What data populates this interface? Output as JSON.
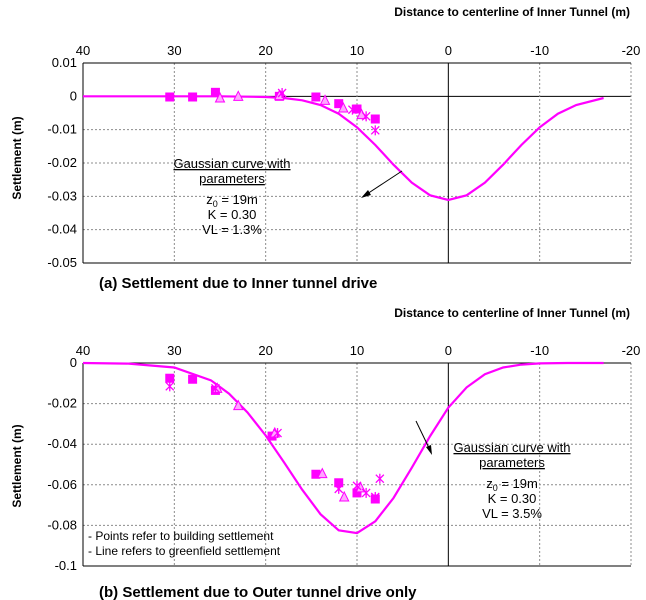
{
  "charts": [
    {
      "caption": "(a) Settlement due to Inner tunnel drive",
      "x_axis_title": "Distance to centerline of Inner Tunnel (m)",
      "y_axis_title": "Settlement (m)",
      "x_ticks": [
        "40",
        "30",
        "20",
        "10",
        "0",
        "-10",
        "-20"
      ],
      "y_ticks": [
        "0.01",
        "0",
        "-0.01",
        "-0.02",
        "-0.03",
        "-0.04",
        "-0.05"
      ],
      "annotation": {
        "title": "Gaussian curve with parameters",
        "z0": "z0 = 19m",
        "k": "K = 0.30",
        "vl": "VL = 1.3%"
      }
    },
    {
      "caption": "(b) Settlement due to Outer tunnel drive only",
      "x_axis_title": "Distance to centerline of Inner Tunnel (m)",
      "y_axis_title": "Settlement (m)",
      "x_ticks": [
        "40",
        "30",
        "20",
        "10",
        "0",
        "-10",
        "-20"
      ],
      "y_ticks": [
        "0",
        "-0.02",
        "-0.04",
        "-0.06",
        "-0.08",
        "-0.1"
      ],
      "annotation": {
        "title": "Gaussian curve with parameters",
        "z0": "z0 = 19m",
        "k": "K = 0.30",
        "vl": "VL = 3.5%"
      },
      "notes": [
        "- Points refer to building settlement",
        "- Line refers to greenfield settlement"
      ]
    }
  ],
  "colors": {
    "series": "#ff00ff",
    "grid": "#8c8c8c"
  },
  "chart_data": [
    {
      "type": "scatter",
      "xlim": [
        40,
        -20
      ],
      "ylim": [
        -0.05,
        0.01
      ],
      "gridlines": "dashed",
      "curve": {
        "x": [
          40,
          35,
          30,
          25,
          22,
          20,
          18,
          16,
          14,
          12,
          10,
          8,
          6,
          4,
          2,
          0,
          -2,
          -4,
          -6,
          -8,
          -10,
          -12,
          -14,
          -17
        ],
        "y": [
          0,
          0,
          0,
          0,
          -0.0001,
          -0.0002,
          -0.0005,
          -0.0012,
          -0.0026,
          -0.0052,
          -0.0093,
          -0.0146,
          -0.0205,
          -0.0259,
          -0.0297,
          -0.0311,
          -0.0297,
          -0.0259,
          -0.0205,
          -0.0146,
          -0.0093,
          -0.0052,
          -0.0026,
          -0.0005
        ]
      },
      "series": [
        {
          "marker": "square",
          "x": [
            30.5,
            28,
            25.5,
            18.5,
            14.5,
            12,
            10,
            8
          ],
          "y": [
            -0.0002,
            -0.0002,
            0.0012,
            0,
            -0.0002,
            -0.0022,
            -0.0038,
            -0.0068
          ]
        },
        {
          "marker": "triangle",
          "x": [
            25,
            23,
            18.5,
            13.5,
            11.5,
            9.5
          ],
          "y": [
            -0.0005,
            0,
            0.0002,
            -0.0012,
            -0.0035,
            -0.0055
          ]
        },
        {
          "marker": "star",
          "x": [
            18.2,
            10.5,
            9,
            8
          ],
          "y": [
            0.001,
            -0.004,
            -0.006,
            -0.0102
          ]
        }
      ]
    },
    {
      "type": "scatter",
      "xlim": [
        40,
        -20
      ],
      "ylim": [
        -0.1,
        0
      ],
      "gridlines": "dashed",
      "curve": {
        "x": [
          40,
          35,
          30,
          26,
          24,
          22,
          20,
          18,
          16,
          14,
          12,
          10,
          8,
          6,
          4,
          2,
          0,
          -2,
          -4,
          -6,
          -8,
          -10,
          -13,
          -17
        ],
        "y": [
          0,
          -0.0003,
          -0.0022,
          -0.0085,
          -0.0151,
          -0.0243,
          -0.0357,
          -0.0488,
          -0.0624,
          -0.0745,
          -0.0824,
          -0.0838,
          -0.078,
          -0.0665,
          -0.0516,
          -0.036,
          -0.022,
          -0.012,
          -0.0055,
          -0.0022,
          -0.0008,
          -0.0002,
          0,
          0
        ]
      },
      "series": [
        {
          "marker": "square",
          "x": [
            30.5,
            28,
            25.5,
            19.3,
            14.5,
            12,
            10,
            8
          ],
          "y": [
            -0.0075,
            -0.008,
            -0.0135,
            -0.036,
            -0.0548,
            -0.059,
            -0.064,
            -0.067
          ]
        },
        {
          "marker": "triangle",
          "x": [
            25.3,
            23,
            19,
            13.8,
            11.4,
            9.6
          ],
          "y": [
            -0.0125,
            -0.021,
            -0.0345,
            -0.0545,
            -0.066,
            -0.0615
          ]
        },
        {
          "marker": "star",
          "x": [
            30.5,
            25.5,
            18.7,
            12,
            10,
            9,
            8,
            7.5
          ],
          "y": [
            -0.0115,
            -0.0125,
            -0.0345,
            -0.062,
            -0.0605,
            -0.064,
            -0.066,
            -0.057
          ]
        }
      ]
    }
  ]
}
